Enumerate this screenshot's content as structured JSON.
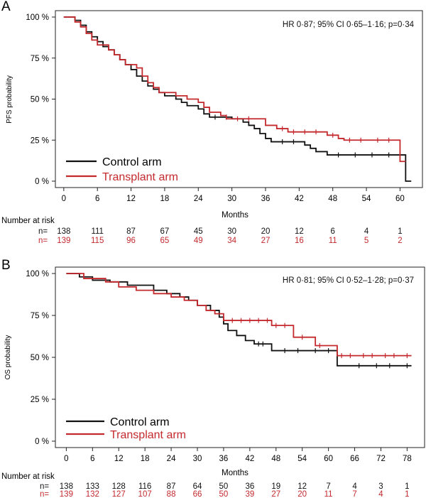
{
  "colors": {
    "control": "#111111",
    "transplant": "#c4292d",
    "axis": "#222222"
  },
  "chart_data": [
    {
      "type": "line",
      "panel_label": "A",
      "ylabel": "PFS probability",
      "xlabel": "Months",
      "annotation": "HR 0·87; 95% CI 0·65–1·16; p=0·34",
      "xlim": [
        -1.5,
        64
      ],
      "ylim": [
        0,
        1
      ],
      "xticks": [
        0,
        6,
        12,
        18,
        24,
        30,
        36,
        42,
        48,
        54,
        60
      ],
      "xtick_labels": [
        "0",
        "6",
        "12",
        "18",
        "24",
        "30",
        "36",
        "42",
        "48",
        "54",
        "60"
      ],
      "yticks": [
        0,
        0.25,
        0.5,
        0.75,
        1.0
      ],
      "ytick_labels": [
        "0 %",
        "25 %",
        "50 %",
        "75 %",
        "100 %"
      ],
      "legend": [
        "Control arm",
        "Transplant arm"
      ],
      "series": [
        {
          "name": "Control arm",
          "color_key": "control",
          "steps": [
            [
              0,
              1.0
            ],
            [
              2,
              0.98
            ],
            [
              3,
              0.95
            ],
            [
              4,
              0.91
            ],
            [
              5,
              0.88
            ],
            [
              6,
              0.85
            ],
            [
              7,
              0.82
            ],
            [
              8,
              0.8
            ],
            [
              9,
              0.77
            ],
            [
              10,
              0.74
            ],
            [
              11,
              0.71
            ],
            [
              12,
              0.68
            ],
            [
              13,
              0.64
            ],
            [
              14,
              0.61
            ],
            [
              15,
              0.58
            ],
            [
              16,
              0.56
            ],
            [
              17,
              0.54
            ],
            [
              18,
              0.52
            ],
            [
              20,
              0.5
            ],
            [
              21,
              0.48
            ],
            [
              22,
              0.46
            ],
            [
              24,
              0.44
            ],
            [
              25,
              0.41
            ],
            [
              26,
              0.39
            ],
            [
              30,
              0.38
            ],
            [
              32,
              0.36
            ],
            [
              33,
              0.34
            ],
            [
              34,
              0.32
            ],
            [
              35,
              0.29
            ],
            [
              36,
              0.26
            ],
            [
              37,
              0.24
            ],
            [
              43,
              0.22
            ],
            [
              44,
              0.2
            ],
            [
              45,
              0.18
            ],
            [
              47,
              0.16
            ],
            [
              61,
              0.0
            ]
          ],
          "end": 62,
          "censors": [
            [
              27,
              0.39
            ],
            [
              29,
              0.39
            ],
            [
              39,
              0.24
            ],
            [
              41,
              0.24
            ],
            [
              49,
              0.16
            ],
            [
              52,
              0.16
            ],
            [
              55,
              0.16
            ],
            [
              58,
              0.16
            ],
            [
              60,
              0.16
            ]
          ]
        },
        {
          "name": "Transplant arm",
          "color_key": "transplant",
          "steps": [
            [
              0,
              1.0
            ],
            [
              2,
              0.97
            ],
            [
              3,
              0.94
            ],
            [
              4,
              0.9
            ],
            [
              5,
              0.86
            ],
            [
              6,
              0.83
            ],
            [
              8,
              0.8
            ],
            [
              9,
              0.77
            ],
            [
              10,
              0.74
            ],
            [
              11,
              0.71
            ],
            [
              13,
              0.69
            ],
            [
              14,
              0.64
            ],
            [
              15,
              0.6
            ],
            [
              16,
              0.57
            ],
            [
              17,
              0.54
            ],
            [
              20,
              0.52
            ],
            [
              22,
              0.5
            ],
            [
              24,
              0.48
            ],
            [
              25,
              0.45
            ],
            [
              26,
              0.42
            ],
            [
              28,
              0.4
            ],
            [
              29,
              0.38
            ],
            [
              36,
              0.34
            ],
            [
              38,
              0.32
            ],
            [
              40,
              0.3
            ],
            [
              47,
              0.28
            ],
            [
              49,
              0.26
            ],
            [
              50,
              0.25
            ],
            [
              60,
              0.12
            ]
          ],
          "end": 61,
          "censors": [
            [
              31,
              0.38
            ],
            [
              33,
              0.38
            ],
            [
              39,
              0.32
            ],
            [
              41,
              0.3
            ],
            [
              43,
              0.3
            ],
            [
              45,
              0.3
            ],
            [
              48,
              0.28
            ],
            [
              51,
              0.25
            ],
            [
              53,
              0.25
            ],
            [
              56,
              0.25
            ],
            [
              58,
              0.25
            ]
          ]
        }
      ],
      "risk": {
        "title": "Number at risk",
        "prefix": "n=",
        "rows": [
          {
            "name": "Control arm",
            "color_key": "control",
            "values": [
              "138",
              "111",
              "87",
              "67",
              "45",
              "30",
              "20",
              "12",
              "6",
              "4",
              "1"
            ]
          },
          {
            "name": "Transplant arm",
            "color_key": "transplant",
            "values": [
              "139",
              "115",
              "96",
              "65",
              "49",
              "34",
              "27",
              "16",
              "11",
              "5",
              "2"
            ]
          }
        ]
      }
    },
    {
      "type": "line",
      "panel_label": "B",
      "ylabel": "OS probability",
      "xlabel": "Months",
      "annotation": "HR 0·81; 95% CI 0·52–1·28; p=0·37",
      "xlim": [
        -2.5,
        82
      ],
      "ylim": [
        0,
        1
      ],
      "xticks": [
        0,
        6,
        12,
        18,
        24,
        30,
        36,
        42,
        48,
        54,
        60,
        66,
        72,
        78
      ],
      "xtick_labels": [
        "0",
        "6",
        "12",
        "18",
        "24",
        "30",
        "36",
        "42",
        "48",
        "54",
        "60",
        "66",
        "72",
        "78"
      ],
      "yticks": [
        0,
        0.25,
        0.5,
        0.75,
        1.0
      ],
      "ytick_labels": [
        "0 %",
        "25 %",
        "50 %",
        "75 %",
        "100 %"
      ],
      "legend": [
        "Control arm",
        "Transplant arm"
      ],
      "series": [
        {
          "name": "Control arm",
          "color_key": "control",
          "steps": [
            [
              0,
              1.0
            ],
            [
              3,
              0.98
            ],
            [
              6,
              0.96
            ],
            [
              10,
              0.95
            ],
            [
              14,
              0.93
            ],
            [
              20,
              0.9
            ],
            [
              23,
              0.88
            ],
            [
              26,
              0.86
            ],
            [
              28,
              0.84
            ],
            [
              30,
              0.81
            ],
            [
              33,
              0.78
            ],
            [
              35,
              0.74
            ],
            [
              36,
              0.7
            ],
            [
              37,
              0.66
            ],
            [
              39,
              0.63
            ],
            [
              41,
              0.6
            ],
            [
              43,
              0.58
            ],
            [
              47,
              0.54
            ],
            [
              62,
              0.45
            ]
          ],
          "end": 79,
          "censors": [
            [
              44,
              0.58
            ],
            [
              45,
              0.58
            ],
            [
              50,
              0.54
            ],
            [
              53,
              0.54
            ],
            [
              57,
              0.54
            ],
            [
              60,
              0.54
            ],
            [
              67,
              0.45
            ],
            [
              71,
              0.45
            ],
            [
              74,
              0.45
            ],
            [
              78,
              0.45
            ]
          ]
        },
        {
          "name": "Transplant arm",
          "color_key": "transplant",
          "steps": [
            [
              0,
              1.0
            ],
            [
              4,
              0.97
            ],
            [
              9,
              0.95
            ],
            [
              12,
              0.92
            ],
            [
              16,
              0.9
            ],
            [
              20,
              0.88
            ],
            [
              24,
              0.86
            ],
            [
              27,
              0.84
            ],
            [
              30,
              0.81
            ],
            [
              32,
              0.78
            ],
            [
              34,
              0.76
            ],
            [
              36,
              0.72
            ],
            [
              47,
              0.69
            ],
            [
              52,
              0.62
            ],
            [
              57,
              0.57
            ],
            [
              62,
              0.51
            ]
          ],
          "end": 79,
          "censors": [
            [
              38,
              0.72
            ],
            [
              40,
              0.72
            ],
            [
              42,
              0.72
            ],
            [
              44,
              0.72
            ],
            [
              46,
              0.72
            ],
            [
              48,
              0.69
            ],
            [
              50,
              0.69
            ],
            [
              54,
              0.62
            ],
            [
              58,
              0.57
            ],
            [
              63,
              0.51
            ],
            [
              65,
              0.51
            ],
            [
              68,
              0.51
            ],
            [
              70,
              0.51
            ],
            [
              73,
              0.51
            ],
            [
              75,
              0.51
            ],
            [
              78,
              0.51
            ]
          ]
        }
      ],
      "risk": {
        "title": "Number at risk",
        "prefix": "n=",
        "rows": [
          {
            "name": "Control arm",
            "color_key": "control",
            "values": [
              "138",
              "133",
              "128",
              "116",
              "87",
              "64",
              "50",
              "36",
              "19",
              "12",
              "7",
              "4",
              "3",
              "1"
            ]
          },
          {
            "name": "Transplant arm",
            "color_key": "transplant",
            "values": [
              "139",
              "132",
              "127",
              "107",
              "88",
              "66",
              "50",
              "39",
              "27",
              "20",
              "11",
              "7",
              "4",
              "1"
            ]
          }
        ]
      }
    }
  ]
}
